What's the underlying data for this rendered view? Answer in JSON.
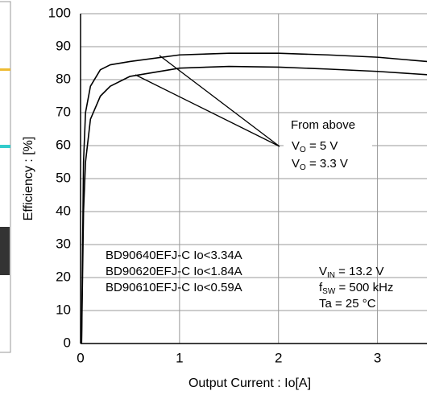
{
  "chart_data": {
    "type": "line",
    "x_label": "Output Current : Io[A]",
    "y_label": "Efficiency : [%]",
    "x": [
      0.01,
      0.03,
      0.05,
      0.1,
      0.2,
      0.3,
      0.5,
      1,
      1.5,
      2,
      2.5,
      3,
      3.5
    ],
    "series": [
      {
        "color": "#000000",
        "values": [
          0,
          55,
          70,
          78,
          83,
          84.5,
          85.5,
          87.5,
          88,
          88,
          87.5,
          86.8,
          85.5
        ]
      },
      {
        "color": "#000000",
        "values": [
          0,
          40,
          55,
          68,
          75,
          78,
          81,
          83.5,
          84,
          83.8,
          83.2,
          82.5,
          81.5
        ]
      }
    ],
    "xlim": [
      0,
      3.5
    ],
    "xticks": [
      0,
      1,
      2,
      3
    ],
    "ylim": [
      0,
      100
    ],
    "yticks": [
      0,
      10,
      20,
      30,
      40,
      50,
      60,
      70,
      80,
      90,
      100
    ],
    "grid": true,
    "annotations": {
      "from_above": "From above",
      "vo_5": {
        "main": "V",
        "sub": "O",
        "rest": " = 5 V"
      },
      "vo_33": {
        "main": "V",
        "sub": "O",
        "rest": " = 3.3 V"
      },
      "parts": [
        "BD90640EFJ-C Io<3.34A",
        "BD90620EFJ-C Io<1.84A",
        "BD90610EFJ-C Io<0.59A"
      ],
      "vin": {
        "main": "V",
        "sub": "IN",
        "rest": " = 13.2 V"
      },
      "fsw": {
        "main": "f",
        "sub": "SW",
        "rest": " = 500 kHz"
      },
      "ta": "Ta = 25 °C"
    }
  }
}
